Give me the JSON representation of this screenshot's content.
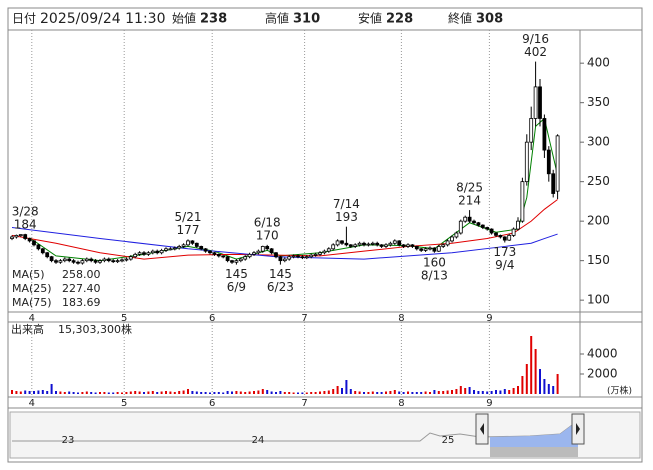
{
  "quote": {
    "date_label": "日付",
    "datetime": "2025/09/24 11:30",
    "items": [
      {
        "label": "始値",
        "value": 238
      },
      {
        "label": "高値",
        "value": 310,
        "color": "#e00000"
      },
      {
        "label": "安値",
        "value": 228,
        "color": "#008000"
      },
      {
        "label": "終値",
        "value": 308
      }
    ]
  },
  "chart_data": {
    "type": "candlestick",
    "categories": [
      null,
      null,
      null,
      null,
      null,
      "4",
      null,
      null,
      null,
      null,
      null,
      null,
      null,
      null,
      null,
      null,
      null,
      null,
      null,
      null,
      null,
      null,
      null,
      null,
      null,
      null,
      "5",
      null,
      null,
      null,
      null,
      null,
      null,
      null,
      null,
      null,
      null,
      null,
      null,
      null,
      null,
      null,
      null,
      null,
      null,
      null,
      "6",
      null,
      null,
      null,
      null,
      null,
      null,
      null,
      null,
      null,
      null,
      null,
      null,
      null,
      null,
      null,
      null,
      null,
      null,
      null,
      null,
      "7",
      null,
      null,
      null,
      null,
      null,
      null,
      null,
      null,
      null,
      null,
      null,
      null,
      null,
      null,
      null,
      null,
      null,
      null,
      null,
      null,
      null,
      "8",
      null,
      null,
      null,
      null,
      null,
      null,
      null,
      null,
      null,
      null,
      null,
      null,
      null,
      null,
      null,
      null,
      null,
      null,
      null,
      "9",
      null,
      null,
      null,
      null,
      null,
      null,
      null,
      null,
      null,
      null,
      null,
      null,
      null,
      null,
      null
    ],
    "candles": [
      [
        178,
        182,
        176,
        180
      ],
      [
        180,
        183,
        178,
        182
      ],
      [
        182,
        183,
        180,
        183
      ],
      [
        183,
        184,
        176,
        178
      ],
      [
        178,
        179,
        173,
        175
      ],
      [
        175,
        176,
        168,
        170
      ],
      [
        170,
        171,
        163,
        165
      ],
      [
        165,
        166,
        158,
        160
      ],
      [
        160,
        161,
        153,
        155
      ],
      [
        155,
        156,
        148,
        150
      ],
      [
        150,
        152,
        146,
        148
      ],
      [
        148,
        152,
        146,
        150
      ],
      [
        150,
        154,
        148,
        152
      ],
      [
        152,
        154,
        148,
        150
      ],
      [
        150,
        152,
        146,
        148
      ],
      [
        148,
        150,
        145,
        147
      ],
      [
        147,
        152,
        145,
        150
      ],
      [
        150,
        154,
        148,
        152
      ],
      [
        152,
        154,
        148,
        150
      ],
      [
        150,
        152,
        146,
        148
      ],
      [
        148,
        152,
        146,
        150
      ],
      [
        150,
        154,
        148,
        152
      ],
      [
        152,
        154,
        148,
        150
      ],
      [
        150,
        152,
        147,
        149
      ],
      [
        149,
        152,
        147,
        150
      ],
      [
        150,
        153,
        148,
        151
      ],
      [
        151,
        154,
        149,
        152
      ],
      [
        152,
        157,
        150,
        155
      ],
      [
        155,
        160,
        153,
        158
      ],
      [
        158,
        162,
        156,
        160
      ],
      [
        160,
        162,
        156,
        158
      ],
      [
        158,
        162,
        156,
        160
      ],
      [
        160,
        164,
        158,
        162
      ],
      [
        162,
        164,
        158,
        160
      ],
      [
        160,
        165,
        158,
        163
      ],
      [
        163,
        167,
        161,
        165
      ],
      [
        165,
        167,
        163,
        165
      ],
      [
        165,
        168,
        163,
        166
      ],
      [
        166,
        170,
        164,
        168
      ],
      [
        168,
        172,
        166,
        170
      ],
      [
        170,
        177,
        168,
        175
      ],
      [
        175,
        176,
        170,
        172
      ],
      [
        172,
        173,
        166,
        168
      ],
      [
        168,
        169,
        163,
        165
      ],
      [
        165,
        166,
        160,
        162
      ],
      [
        162,
        163,
        158,
        160
      ],
      [
        160,
        161,
        156,
        158
      ],
      [
        158,
        159,
        154,
        156
      ],
      [
        156,
        157,
        153,
        155
      ],
      [
        155,
        156,
        148,
        150
      ],
      [
        150,
        151,
        146,
        148
      ],
      [
        148,
        152,
        145,
        150
      ],
      [
        150,
        154,
        148,
        152
      ],
      [
        152,
        157,
        150,
        155
      ],
      [
        155,
        160,
        153,
        158
      ],
      [
        158,
        162,
        156,
        160
      ],
      [
        160,
        164,
        158,
        162
      ],
      [
        162,
        169,
        160,
        168
      ],
      [
        168,
        170,
        163,
        165
      ],
      [
        165,
        166,
        158,
        160
      ],
      [
        160,
        161,
        153,
        155
      ],
      [
        155,
        156,
        145,
        150
      ],
      [
        150,
        154,
        148,
        152
      ],
      [
        152,
        157,
        150,
        155
      ],
      [
        155,
        158,
        153,
        156
      ],
      [
        156,
        158,
        153,
        155
      ],
      [
        155,
        157,
        152,
        154
      ],
      [
        154,
        157,
        152,
        155
      ],
      [
        155,
        159,
        153,
        157
      ],
      [
        157,
        160,
        155,
        158
      ],
      [
        158,
        162,
        156,
        160
      ],
      [
        160,
        164,
        158,
        162
      ],
      [
        162,
        167,
        160,
        165
      ],
      [
        165,
        172,
        163,
        170
      ],
      [
        170,
        177,
        168,
        175
      ],
      [
        175,
        176,
        170,
        172
      ],
      [
        172,
        193,
        168,
        170
      ],
      [
        170,
        171,
        166,
        168
      ],
      [
        168,
        172,
        166,
        170
      ],
      [
        170,
        174,
        168,
        172
      ],
      [
        172,
        174,
        168,
        170
      ],
      [
        170,
        173,
        168,
        171
      ],
      [
        171,
        174,
        169,
        172
      ],
      [
        172,
        174,
        168,
        170
      ],
      [
        170,
        171,
        166,
        168
      ],
      [
        168,
        172,
        166,
        170
      ],
      [
        170,
        174,
        168,
        172
      ],
      [
        172,
        177,
        170,
        175
      ],
      [
        175,
        176,
        168,
        170
      ],
      [
        170,
        171,
        166,
        168
      ],
      [
        168,
        172,
        166,
        170
      ],
      [
        170,
        171,
        166,
        168
      ],
      [
        168,
        169,
        163,
        165
      ],
      [
        165,
        166,
        161,
        163
      ],
      [
        163,
        167,
        161,
        165
      ],
      [
        165,
        168,
        163,
        166
      ],
      [
        166,
        167,
        160,
        162
      ],
      [
        162,
        170,
        161,
        168
      ],
      [
        168,
        172,
        166,
        170
      ],
      [
        170,
        177,
        168,
        175
      ],
      [
        175,
        182,
        173,
        180
      ],
      [
        180,
        187,
        178,
        185
      ],
      [
        185,
        202,
        183,
        200
      ],
      [
        200,
        207,
        198,
        205
      ],
      [
        205,
        214,
        198,
        200
      ],
      [
        200,
        202,
        196,
        198
      ],
      [
        198,
        199,
        193,
        195
      ],
      [
        195,
        196,
        190,
        192
      ],
      [
        192,
        193,
        188,
        190
      ],
      [
        190,
        191,
        183,
        185
      ],
      [
        185,
        186,
        180,
        182
      ],
      [
        182,
        183,
        178,
        180
      ],
      [
        180,
        181,
        173,
        176
      ],
      [
        176,
        184,
        175,
        182
      ],
      [
        182,
        192,
        180,
        190
      ],
      [
        190,
        205,
        188,
        200
      ],
      [
        200,
        255,
        198,
        250
      ],
      [
        250,
        310,
        245,
        300
      ],
      [
        300,
        345,
        290,
        330
      ],
      [
        330,
        402,
        320,
        370
      ],
      [
        370,
        380,
        320,
        330
      ],
      [
        330,
        335,
        280,
        290
      ],
      [
        290,
        295,
        250,
        260
      ],
      [
        260,
        265,
        230,
        235
      ],
      [
        238,
        310,
        228,
        308
      ]
    ],
    "up_color": "#ffffff",
    "down_color": "#000000",
    "ylim": [
      85,
      442
    ],
    "yticks": [
      100,
      150,
      200,
      250,
      300,
      350,
      400
    ],
    "month_grid": true,
    "moving_averages": [
      {
        "name": "MA(5)",
        "legend_value": "258.00",
        "color": "#008000",
        "x": [
          4,
          10,
          20,
          30,
          40,
          46,
          51,
          58,
          61,
          70,
          80,
          90,
          96,
          104,
          110,
          115,
          117,
          119,
          121,
          124
        ],
        "values": [
          179,
          156,
          150,
          158,
          168,
          162,
          152,
          163,
          156,
          160,
          170,
          169,
          165,
          198,
          186,
          190,
          230,
          320,
          330,
          258
        ]
      },
      {
        "name": "MA(25)",
        "legend_value": "227.40",
        "color": "#e00000",
        "x": [
          0,
          10,
          20,
          30,
          40,
          50,
          60,
          70,
          80,
          90,
          100,
          108,
          114,
          118,
          121,
          124
        ],
        "values": [
          182,
          172,
          160,
          152,
          157,
          158,
          157,
          156,
          162,
          168,
          172,
          178,
          185,
          200,
          215,
          227.4
        ]
      },
      {
        "name": "MA(75)",
        "legend_value": "183.69",
        "color": "#2020e0",
        "x": [
          0,
          20,
          40,
          60,
          80,
          100,
          112,
          118,
          121,
          124
        ],
        "values": [
          192,
          178,
          165,
          155,
          152,
          160,
          168,
          172,
          178,
          183.69
        ]
      }
    ],
    "annotations": [
      {
        "date": "3/28",
        "price": 184
      },
      {
        "date": "5/21",
        "price": 177
      },
      {
        "date": "6/18",
        "price": 170
      },
      {
        "date": "7/14",
        "price": 193
      },
      {
        "date": "8/25",
        "price": 214
      },
      {
        "date": "9/16",
        "price": 402
      },
      {
        "date": "6/9",
        "price": 145
      },
      {
        "date": "6/23",
        "price": 145
      },
      {
        "date": "8/13",
        "price": 160
      },
      {
        "date": "9/4",
        "price": 173
      }
    ],
    "volume": {
      "title": "出来高",
      "total": "15,303,300株",
      "unit": "(万株)",
      "up_color": "#e00000",
      "down_color": "#1010d0",
      "ylim": [
        0,
        7000
      ],
      "yticks": [
        2000,
        4000
      ],
      "values": [
        400,
        300,
        250,
        350,
        300,
        300,
        350,
        400,
        300,
        1000,
        300,
        250,
        200,
        250,
        200,
        150,
        200,
        250,
        200,
        150,
        200,
        200,
        150,
        150,
        200,
        150,
        200,
        250,
        300,
        250,
        200,
        250,
        300,
        200,
        250,
        300,
        250,
        200,
        300,
        350,
        500,
        300,
        250,
        200,
        200,
        150,
        200,
        200,
        150,
        300,
        250,
        300,
        250,
        200,
        250,
        300,
        350,
        500,
        400,
        250,
        200,
        300,
        200,
        200,
        150,
        150,
        150,
        150,
        200,
        200,
        250,
        300,
        350,
        500,
        800,
        600,
        1400,
        500,
        300,
        250,
        200,
        200,
        250,
        200,
        200,
        250,
        300,
        400,
        250,
        200,
        250,
        200,
        200,
        200,
        250,
        200,
        400,
        300,
        300,
        350,
        400,
        500,
        800,
        600,
        700,
        400,
        300,
        300,
        250,
        300,
        400,
        350,
        500,
        400,
        600,
        800,
        1800,
        3000,
        5800,
        4500,
        2500,
        1500,
        1000,
        800,
        2000
      ]
    },
    "navigator": {
      "labels": [
        "23",
        "24",
        "25"
      ]
    }
  }
}
